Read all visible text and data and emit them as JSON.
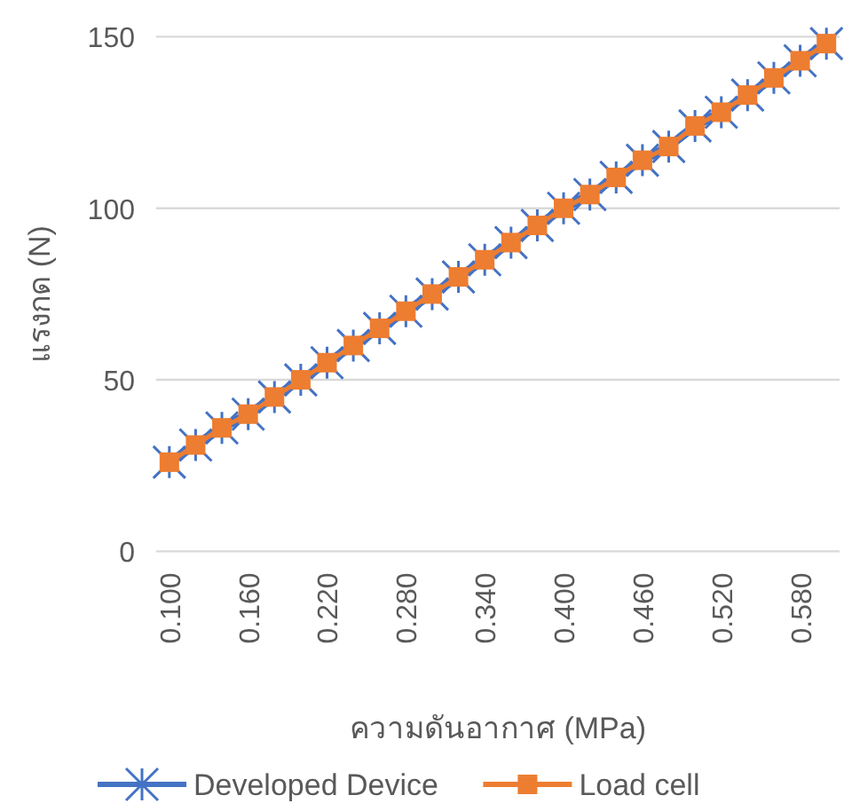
{
  "chart_data": {
    "type": "line",
    "xlabel": "ความดันอากาศ (MPa)",
    "ylabel": "แรงกด (N)",
    "categories": [
      "0.100",
      null,
      null,
      "0.160",
      null,
      null,
      "0.220",
      null,
      null,
      "0.280",
      null,
      null,
      "0.340",
      null,
      null,
      "0.400",
      null,
      null,
      "0.460",
      null,
      null,
      "0.520",
      null,
      null,
      "0.580",
      null
    ],
    "series": [
      {
        "name": "Developed Device",
        "color": "#4472c4",
        "marker": "cross",
        "values": [
          26,
          31,
          36,
          40,
          45,
          50,
          55,
          60,
          65,
          70,
          75,
          80,
          85,
          90,
          95,
          100,
          104,
          109,
          114,
          118,
          124,
          128,
          133,
          138,
          143,
          148
        ]
      },
      {
        "name": "Load cell",
        "color": "#ed7d31",
        "marker": "square",
        "values": [
          26,
          31,
          36,
          40,
          45,
          50,
          55,
          60,
          65,
          70,
          75,
          80,
          85,
          90,
          95,
          100,
          104,
          109,
          114,
          118,
          124,
          128,
          133,
          138,
          143,
          148
        ]
      }
    ],
    "ylim": [
      0,
      150
    ],
    "yticks": [
      0,
      50,
      100,
      150
    ],
    "grid": "y",
    "legend": "bottom",
    "line_style": "solid"
  }
}
